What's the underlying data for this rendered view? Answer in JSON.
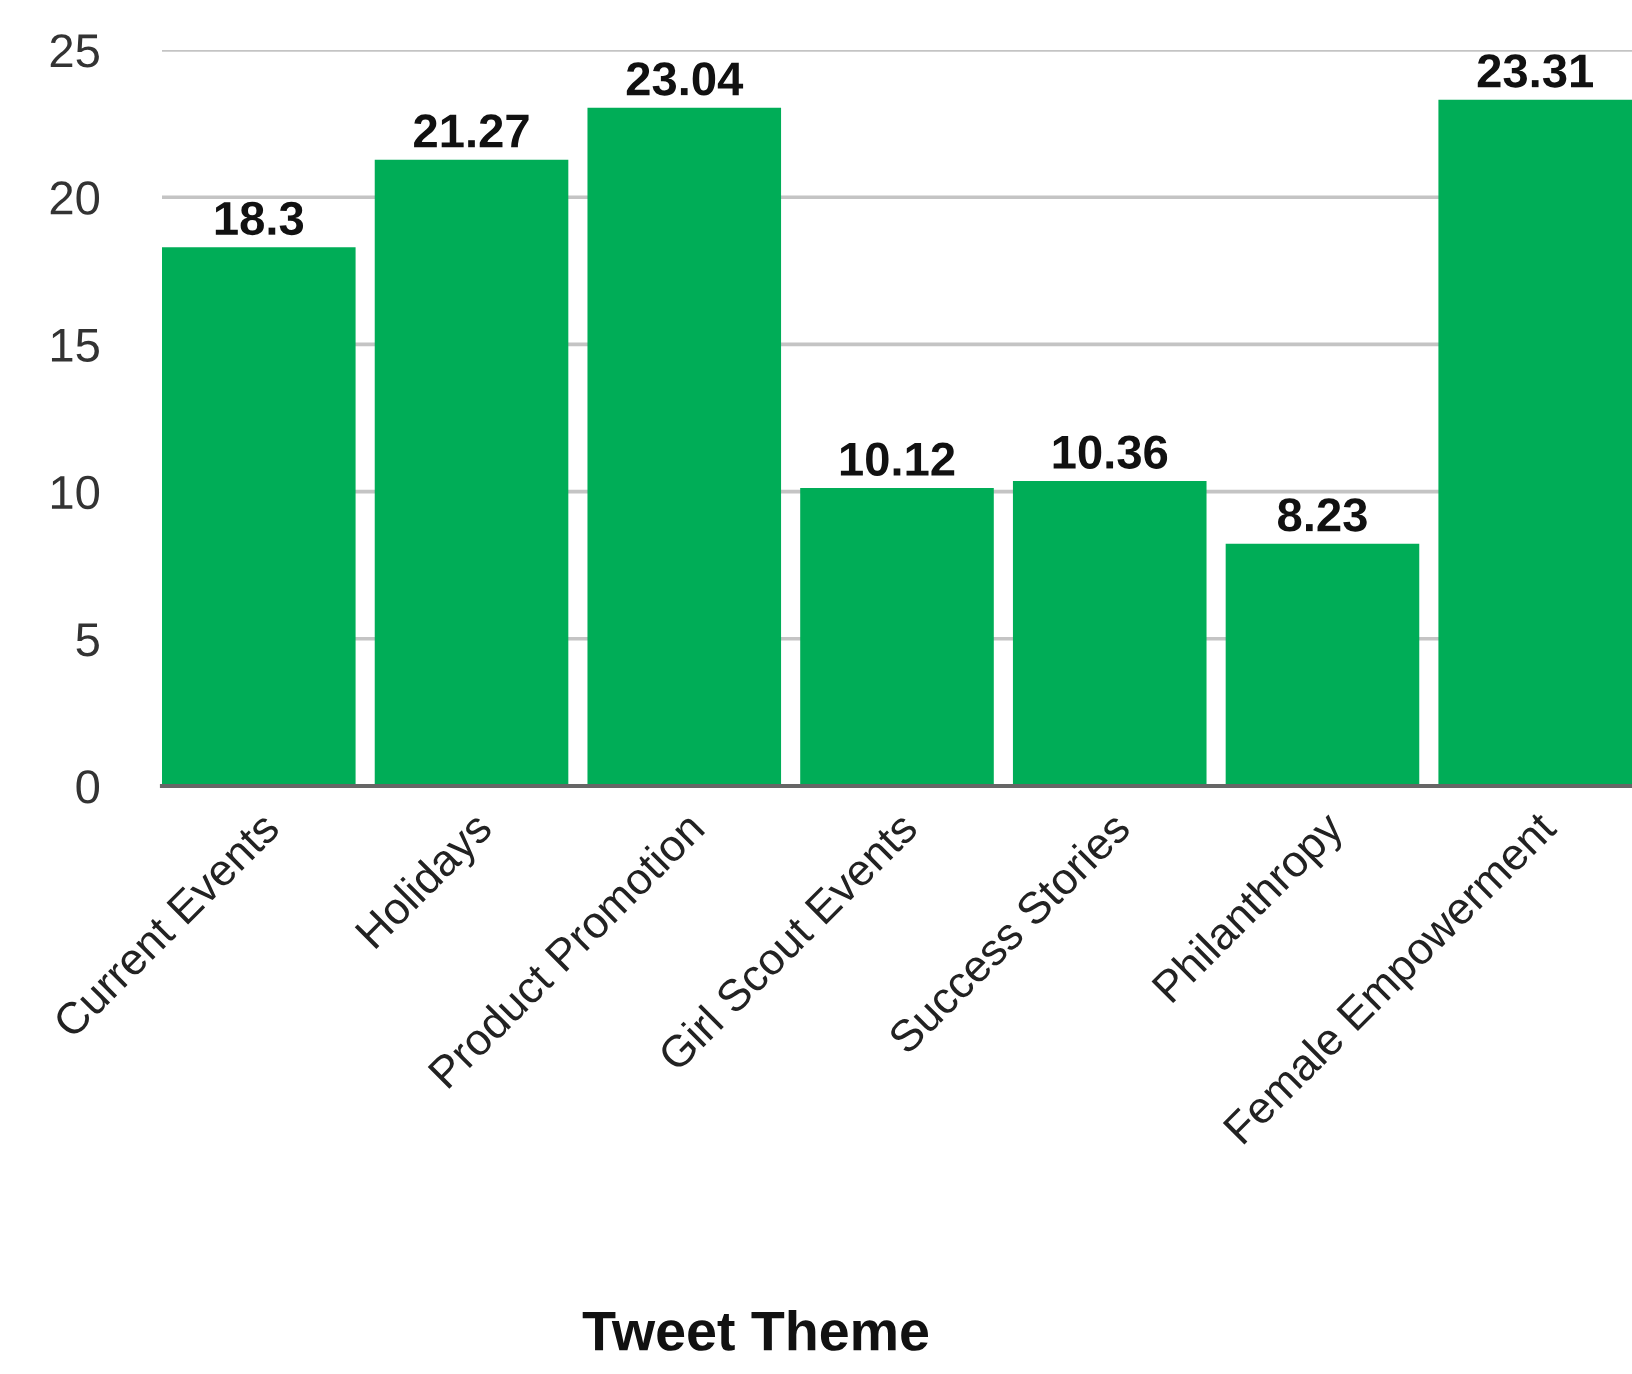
{
  "chart_data": {
    "type": "bar",
    "xlabel": "Tweet Theme",
    "categories": [
      "Current Events",
      "Holidays",
      "Product Promotion",
      "Girl Scout Events",
      "Success Stories",
      "Philanthropy",
      "Female Empowerment"
    ],
    "values": [
      18.3,
      21.27,
      23.04,
      10.12,
      10.36,
      8.23,
      23.31
    ],
    "color": "#00ad57",
    "ylim": [
      0,
      25
    ],
    "yticks": [
      0,
      5,
      10,
      15,
      20,
      25
    ],
    "grid": "y",
    "data_labels": true
  }
}
